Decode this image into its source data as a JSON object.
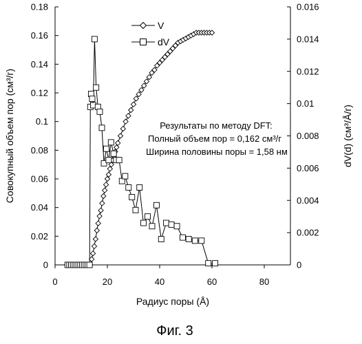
{
  "chart_data": {
    "type": "line",
    "xlabel": "Радиус поры (Å)",
    "ylabel_left": "Совокупный объем пор (см³/г)",
    "ylabel_right": "dV(d) (см³/Å/г)",
    "xlim": [
      0,
      90
    ],
    "ylim_left": [
      0,
      0.18
    ],
    "ylim_right": [
      0,
      0.016
    ],
    "x_ticks": [
      "0",
      "20",
      "40",
      "60",
      "80"
    ],
    "y_left_ticks": [
      "0",
      "0.02",
      "0.04",
      "0.06",
      "0.08",
      "0.1",
      "0.12",
      "0.14",
      "0.16",
      "0.18"
    ],
    "y_right_ticks": [
      "0",
      "0.002",
      "0.004",
      "0.006",
      "0.008",
      "0.01",
      "0.012",
      "0.014",
      "0.016"
    ],
    "legend_position": "top-center",
    "series": [
      {
        "name": "V",
        "axis": "left",
        "marker": "diamond",
        "x": [
          4.5,
          5,
          5.5,
          6,
          6.5,
          7,
          7.5,
          8,
          8.5,
          9,
          9.5,
          10,
          10.5,
          11,
          11.5,
          12,
          12.5,
          13,
          13.5,
          14,
          14.5,
          15,
          15.5,
          16,
          16.5,
          17,
          17.5,
          18,
          18.5,
          19,
          19.5,
          20,
          20.5,
          21,
          21.5,
          22,
          22.5,
          23,
          23.5,
          24,
          25,
          26,
          27,
          28,
          29,
          30,
          31,
          32,
          33,
          34,
          35,
          36,
          37,
          38,
          39,
          40,
          41,
          42,
          43,
          44,
          45,
          46,
          47,
          48,
          49,
          50,
          51,
          52,
          53,
          54,
          55,
          56,
          57,
          58,
          59,
          60
        ],
        "values": [
          0,
          0,
          0,
          0,
          0,
          0,
          0,
          0,
          0,
          0,
          0,
          0,
          0,
          0,
          0,
          0,
          0,
          0,
          0,
          0.004,
          0.008,
          0.013,
          0.018,
          0.024,
          0.029,
          0.034,
          0.038,
          0.043,
          0.048,
          0.052,
          0.056,
          0.06,
          0.063,
          0.067,
          0.07,
          0.073,
          0.076,
          0.079,
          0.082,
          0.085,
          0.09,
          0.095,
          0.1,
          0.104,
          0.108,
          0.112,
          0.116,
          0.119,
          0.122,
          0.125,
          0.128,
          0.131,
          0.134,
          0.136,
          0.139,
          0.141,
          0.143,
          0.145,
          0.147,
          0.149,
          0.151,
          0.153,
          0.155,
          0.156,
          0.157,
          0.158,
          0.159,
          0.16,
          0.161,
          0.162,
          0.162,
          0.162,
          0.162,
          0.162,
          0.162,
          0.162
        ]
      },
      {
        "name": "dV",
        "axis": "right",
        "marker": "square",
        "x": [
          4.8,
          5.5,
          6.2,
          6.9,
          7.6,
          8.3,
          9,
          9.7,
          10.4,
          11.1,
          11.8,
          12.5,
          13.2,
          13.5,
          13.8,
          14.2,
          14.6,
          15.1,
          15.7,
          16.4,
          17.1,
          17.9,
          18.7,
          19.6,
          20.5,
          21.4,
          22.4,
          23.4,
          24.5,
          25.6,
          26.8,
          28.1,
          29.4,
          30.8,
          32.3,
          33.8,
          35.4,
          37.1,
          38.8,
          40.6,
          42.5,
          44.5,
          46.6,
          48.8,
          51.1,
          53.5,
          56,
          58.6,
          61.2
        ],
        "values": [
          0,
          0,
          0,
          0,
          0,
          0,
          0,
          0,
          0,
          0,
          0,
          0,
          0,
          0.0098,
          0.0106,
          0.0103,
          0.0099,
          0.014,
          0.011,
          0.0098,
          0.0095,
          0.0085,
          0.0063,
          0.0072,
          0.0065,
          0.0076,
          0.0069,
          0.0065,
          0.0065,
          0.0052,
          0.0055,
          0.0048,
          0.0042,
          0.0034,
          0.0048,
          0.0026,
          0.003,
          0.0024,
          0.0037,
          0.0016,
          0.0026,
          0.0025,
          0.0024,
          0.0017,
          0.0016,
          0.0015,
          0.0015,
          0.0001,
          0.0001
        ]
      }
    ],
    "annotation": [
      "Результаты по методу DFT:",
      "Полный объем пор = 0,162 см³/г",
      "Ширина половины поры = 1,58 нм"
    ]
  },
  "caption": "Фиг. 3"
}
